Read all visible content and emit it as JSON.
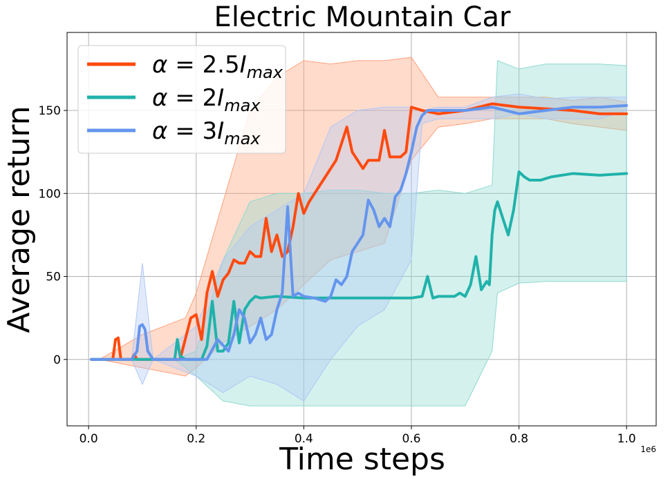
{
  "chart_data": {
    "type": "line",
    "title": "Electric Mountain Car",
    "xlabel": "Time steps",
    "ylabel": "Average return",
    "x_offset_label": "1e6",
    "xlim": [
      -0.04,
      1.055
    ],
    "ylim": [
      -40,
      197
    ],
    "x_ticks": [
      0.0,
      0.2,
      0.4,
      0.6,
      0.8,
      1.0
    ],
    "x_tick_labels": [
      "0.0",
      "0.2",
      "0.4",
      "0.6",
      "0.8",
      "1.0"
    ],
    "y_ticks": [
      0,
      50,
      100,
      150
    ],
    "y_tick_labels": [
      "0",
      "50",
      "100",
      "150"
    ],
    "grid": true,
    "legend_position": "top-left",
    "series": [
      {
        "name": "α = 2.5I_max",
        "legend": {
          "alpha": "α",
          "eq": " = 2.5",
          "I": "I",
          "sub": "max"
        },
        "color": "#ff4a0e",
        "band_color": "#ffa07a",
        "x": [
          0.005,
          0.045,
          0.05,
          0.055,
          0.06,
          0.08,
          0.085,
          0.09,
          0.1,
          0.17,
          0.19,
          0.2,
          0.21,
          0.22,
          0.23,
          0.24,
          0.25,
          0.26,
          0.27,
          0.28,
          0.29,
          0.3,
          0.31,
          0.32,
          0.33,
          0.34,
          0.35,
          0.36,
          0.37,
          0.38,
          0.39,
          0.4,
          0.41,
          0.42,
          0.43,
          0.44,
          0.45,
          0.46,
          0.47,
          0.48,
          0.49,
          0.5,
          0.51,
          0.52,
          0.53,
          0.54,
          0.55,
          0.56,
          0.57,
          0.58,
          0.59,
          0.6,
          0.62,
          0.65,
          0.7,
          0.75,
          0.8,
          0.85,
          0.9,
          0.95,
          1.0
        ],
        "y": [
          0,
          0,
          12,
          13,
          0,
          0,
          3,
          0,
          0,
          0,
          25,
          27,
          12,
          40,
          53,
          38,
          48,
          52,
          60,
          58,
          58,
          65,
          62,
          62,
          85,
          65,
          75,
          62,
          65,
          80,
          100,
          88,
          95,
          100,
          105,
          110,
          115,
          120,
          130,
          140,
          125,
          120,
          115,
          120,
          120,
          120,
          138,
          122,
          122,
          122,
          125,
          152,
          150,
          148,
          150,
          154,
          152,
          151,
          150,
          148,
          148
        ],
        "band_x": [
          0.02,
          0.1,
          0.18,
          0.2,
          0.25,
          0.3,
          0.35,
          0.4,
          0.45,
          0.5,
          0.55,
          0.6,
          0.65,
          0.7,
          0.75,
          0.8,
          0.85,
          0.9,
          0.95,
          1.0
        ],
        "band_upper": [
          0,
          15,
          25,
          40,
          95,
          150,
          170,
          180,
          178,
          180,
          180,
          182,
          158,
          158,
          158,
          158,
          158,
          156,
          158,
          155
        ],
        "band_lower": [
          0,
          -5,
          -10,
          -5,
          10,
          20,
          30,
          45,
          60,
          65,
          70,
          120,
          140,
          142,
          145,
          145,
          145,
          142,
          140,
          138
        ]
      },
      {
        "name": "α = 2I_max",
        "legend": {
          "alpha": "α",
          "eq": " = 2",
          "I": "I",
          "sub": "max"
        },
        "color": "#20b2aa",
        "band_color": "#8fd9cf",
        "x": [
          0.005,
          0.16,
          0.165,
          0.17,
          0.18,
          0.2,
          0.21,
          0.22,
          0.23,
          0.24,
          0.25,
          0.26,
          0.27,
          0.28,
          0.29,
          0.3,
          0.31,
          0.32,
          0.35,
          0.4,
          0.45,
          0.5,
          0.55,
          0.6,
          0.62,
          0.63,
          0.64,
          0.65,
          0.68,
          0.69,
          0.7,
          0.71,
          0.72,
          0.73,
          0.74,
          0.745,
          0.75,
          0.755,
          0.76,
          0.77,
          0.78,
          0.79,
          0.8,
          0.81,
          0.82,
          0.84,
          0.86,
          0.9,
          0.95,
          1.0
        ],
        "y": [
          0,
          0,
          12,
          2,
          0,
          0,
          0,
          8,
          35,
          5,
          5,
          10,
          35,
          10,
          30,
          35,
          38,
          37,
          38,
          37,
          37,
          37,
          37,
          37,
          38,
          50,
          37,
          38,
          38,
          40,
          38,
          45,
          62,
          42,
          47,
          45,
          75,
          90,
          95,
          85,
          75,
          90,
          113,
          110,
          108,
          108,
          110,
          112,
          111,
          112
        ],
        "band_x": [
          0.005,
          0.16,
          0.2,
          0.25,
          0.3,
          0.35,
          0.4,
          0.45,
          0.5,
          0.55,
          0.6,
          0.65,
          0.7,
          0.75,
          0.76,
          0.8,
          0.85,
          0.9,
          0.95,
          1.0
        ],
        "band_upper": [
          0,
          0,
          5,
          60,
          95,
          100,
          100,
          102,
          102,
          100,
          100,
          102,
          100,
          105,
          180,
          175,
          178,
          178,
          178,
          177
        ],
        "band_lower": [
          0,
          0,
          -10,
          -25,
          -28,
          -28,
          -28,
          -28,
          -28,
          -28,
          -28,
          -28,
          -28,
          5,
          40,
          46,
          47,
          47,
          47,
          47
        ]
      },
      {
        "name": "α = 3I_max",
        "legend": {
          "alpha": "α",
          "eq": " = 3",
          "I": "I",
          "sub": "max"
        },
        "color": "#6495ed",
        "band_color": "#b0c8f5",
        "x": [
          0.005,
          0.08,
          0.09,
          0.095,
          0.1,
          0.105,
          0.11,
          0.12,
          0.22,
          0.24,
          0.26,
          0.27,
          0.28,
          0.29,
          0.3,
          0.31,
          0.32,
          0.33,
          0.34,
          0.35,
          0.36,
          0.37,
          0.375,
          0.38,
          0.39,
          0.4,
          0.42,
          0.44,
          0.45,
          0.46,
          0.47,
          0.48,
          0.49,
          0.5,
          0.51,
          0.52,
          0.53,
          0.54,
          0.55,
          0.56,
          0.57,
          0.58,
          0.59,
          0.6,
          0.61,
          0.62,
          0.63,
          0.65,
          0.7,
          0.75,
          0.8,
          0.85,
          0.9,
          0.95,
          1.0
        ],
        "y": [
          0,
          0,
          5,
          20,
          21,
          18,
          5,
          0,
          0,
          12,
          5,
          15,
          30,
          25,
          10,
          15,
          25,
          12,
          15,
          30,
          40,
          92,
          65,
          38,
          40,
          38,
          37,
          35,
          38,
          48,
          45,
          50,
          65,
          70,
          75,
          96,
          90,
          80,
          85,
          80,
          98,
          102,
          112,
          125,
          140,
          147,
          150,
          150,
          150,
          152,
          148,
          150,
          152,
          152,
          153
        ],
        "band_x": [
          0.005,
          0.08,
          0.1,
          0.12,
          0.2,
          0.25,
          0.3,
          0.35,
          0.4,
          0.45,
          0.5,
          0.55,
          0.6,
          0.62,
          0.65,
          0.7,
          0.75,
          0.8,
          0.85,
          0.9,
          0.95,
          1.0
        ],
        "band_upper": [
          0,
          0,
          58,
          0,
          20,
          60,
          80,
          90,
          100,
          140,
          150,
          152,
          152,
          150,
          152,
          152,
          158,
          160,
          157,
          158,
          158,
          158
        ],
        "band_lower": [
          0,
          0,
          -15,
          0,
          -10,
          -20,
          -10,
          -15,
          -25,
          0,
          20,
          30,
          60,
          142,
          145,
          145,
          145,
          148,
          145,
          145,
          145,
          150
        ]
      }
    ]
  }
}
